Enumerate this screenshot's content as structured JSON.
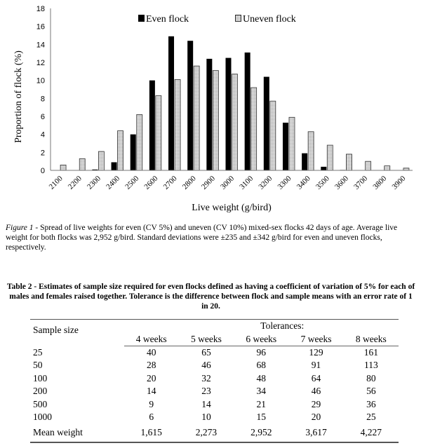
{
  "chart_data": {
    "type": "bar",
    "xlabel": "Live weight (g/bird)",
    "ylabel": "Proportion of flock (%)",
    "ylim": [
      0,
      18
    ],
    "yticks": [
      0,
      2,
      4,
      6,
      8,
      10,
      12,
      14,
      16,
      18
    ],
    "grid": false,
    "legend": "top",
    "categories": [
      "2100",
      "2200",
      "2300",
      "2400",
      "2500",
      "2600",
      "2700",
      "2800",
      "2900",
      "3000",
      "3100",
      "3200",
      "3300",
      "3400",
      "3500",
      "3600",
      "3700",
      "3800",
      "3900"
    ],
    "series": [
      {
        "name": "Even flock",
        "color": "#000000",
        "values": [
          0,
          0,
          0.1,
          0.9,
          4.0,
          10.0,
          14.9,
          14.4,
          12.4,
          12.5,
          13.1,
          10.4,
          5.3,
          1.9,
          0.4,
          0.05,
          0,
          0,
          0
        ]
      },
      {
        "name": "Uneven flock",
        "color": "#c8c8c8",
        "values": [
          0.6,
          1.3,
          2.1,
          4.4,
          6.2,
          8.3,
          10.1,
          11.6,
          11.1,
          10.7,
          9.2,
          7.7,
          5.9,
          4.3,
          2.8,
          1.8,
          1.0,
          0.5,
          0.25
        ]
      }
    ]
  },
  "caption": {
    "lead": "Figure 1 -",
    "text": "Spread of live weights for even (CV 5%) and uneven (CV 10%) mixed-sex flocks 42 days of age. Average live weight for both flocks was 2,952 g/bird. Standard deviations were ±235 and ±342 g/bird for even and uneven flocks, respectively."
  },
  "table": {
    "title": "Table 2 - Estimates of sample size required for even flocks defined as having a coefficient of variation of 5% for each of males and females raised together. Tolerance is the difference between flock and sample means with an error rate of 1 in 20.",
    "row_header": "Sample size",
    "group_header": "Tolerances:",
    "columns": [
      "4 weeks",
      "5 weeks",
      "6 weeks",
      "7 weeks",
      "8 weeks"
    ],
    "rows": [
      {
        "label": "25",
        "values": [
          "40",
          "65",
          "96",
          "129",
          "161"
        ]
      },
      {
        "label": "50",
        "values": [
          "28",
          "46",
          "68",
          "91",
          "113"
        ]
      },
      {
        "label": "100",
        "values": [
          "20",
          "32",
          "48",
          "64",
          "80"
        ]
      },
      {
        "label": "200",
        "values": [
          "14",
          "23",
          "34",
          "46",
          "56"
        ]
      },
      {
        "label": "500",
        "values": [
          "9",
          "14",
          "21",
          "29",
          "36"
        ]
      },
      {
        "label": "1000",
        "values": [
          "6",
          "10",
          "15",
          "20",
          "25"
        ]
      }
    ],
    "footer": {
      "label": "Mean weight",
      "values": [
        "1,615",
        "2,273",
        "2,952",
        "3,617",
        "4,227"
      ]
    }
  }
}
